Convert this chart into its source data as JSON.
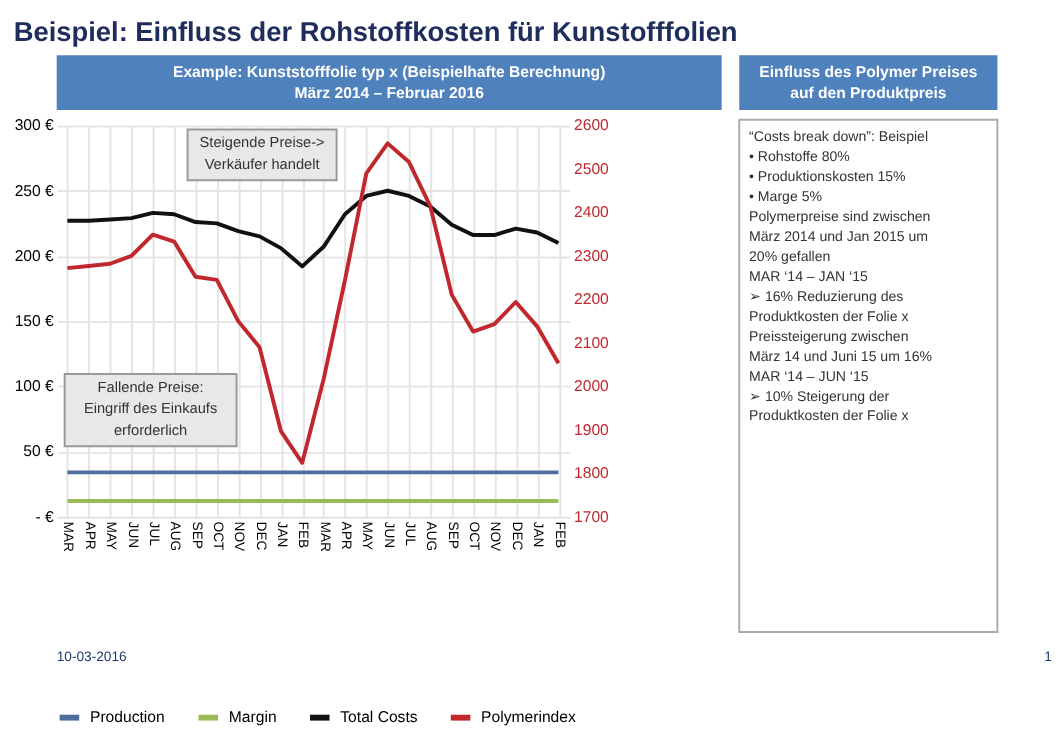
{
  "chart_data": [
    {
      "type": "line",
      "title": "Beispiel: Einfluss der Rohstoffkosten für Kunstofffolien",
      "subtitle": "Example: Kunststofffolie typ x (Beispielhafte Berechnung)\nMärz 2014 – Februar 2016",
      "categories": [
        "MAR",
        "APR",
        "MAY",
        "JUN",
        "JUL",
        "AUG",
        "SEP",
        "OCT",
        "NOV",
        "DEC",
        "JAN",
        "FEB",
        "MAR",
        "APR",
        "MAY",
        "JUN",
        "JUL",
        "AUG",
        "SEP",
        "OCT",
        "NOV",
        "DEC",
        "JAN",
        "FEB"
      ],
      "series": [
        {
          "name": "Production",
          "color": "#4f6e9e",
          "values": [
            34,
            34,
            34,
            34,
            34,
            34,
            34,
            34,
            34,
            34,
            34,
            34,
            34,
            34,
            34,
            34,
            34,
            34,
            34,
            34,
            34,
            34,
            34,
            34
          ]
        },
        {
          "name": "Margin",
          "color": "#9bbb59",
          "values": [
            12,
            12,
            12,
            12,
            12,
            12,
            12,
            12,
            12,
            12,
            12,
            12,
            12,
            12,
            12,
            12,
            12,
            12,
            12,
            12,
            12,
            12,
            12,
            12
          ]
        },
        {
          "name": "Total Costs",
          "color": "#111111",
          "values": [
            227,
            227,
            228,
            229,
            233,
            232,
            226,
            225,
            219,
            215,
            206,
            192,
            207,
            232,
            246,
            250,
            246,
            238,
            224,
            216,
            216,
            221,
            218,
            210
          ]
        },
        {
          "name": "Polymerindex",
          "color": "#c0282d",
          "axis": "y2",
          "values": [
            2272,
            2277,
            2282,
            2300,
            2349,
            2333,
            2252,
            2245,
            2150,
            2090,
            1897,
            1824,
            2016,
            2244,
            2490,
            2559,
            2516,
            2414,
            2211,
            2126,
            2143,
            2194,
            2138,
            2053
          ]
        }
      ],
      "ylim": [
        0,
        300
      ],
      "yticks": [
        {
          "value": 0,
          "label": "- €"
        },
        {
          "value": 50,
          "label": "50 €"
        },
        {
          "value": 100,
          "label": "100 €"
        },
        {
          "value": 150,
          "label": "150 €"
        },
        {
          "value": 200,
          "label": "200 €"
        },
        {
          "value": 250,
          "label": "250 €"
        },
        {
          "value": 300,
          "label": "300 €"
        }
      ],
      "y2lim": [
        1700,
        2600
      ],
      "y2ticks": [
        1700,
        1800,
        1900,
        2000,
        2100,
        2200,
        2300,
        2400,
        2500,
        2600
      ],
      "grid": true,
      "legend": "bottom",
      "annotations": [
        "Steigende Preise->\nVerkäufer handelt",
        "Fallende Preise:\nEingriff des Einkaufs\nerforderlich",
        "10-03-2016",
        "1"
      ]
    },
    {
      "type": "other",
      "title": "Einfluss des Polymer Preises\nauf den Produktpreis",
      "annotations": [
        "“Costs break down”: Beispiel\n•  Rohstoffe 80%\n•  Produktionskosten 15%\n•  Marge 5%",
        "Polymerpreise sind zwischen\nMärz 2014 und Jan 2015 um\n20% gefallen\nMAR ‘14 – JAN ‘15\n➢  16% Reduzierung des\n     Produktkosten der Folie x",
        "Preissteigerung zwischen\nMärz 14 und Juni 15 um 16%\nMAR ‘14 – JUN ‘15\n➢  10% Steigerung der\n     Produktkosten der Folie x"
      ]
    }
  ]
}
